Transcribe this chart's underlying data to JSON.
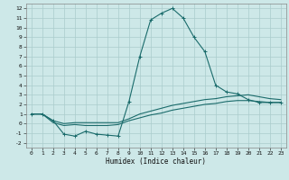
{
  "background_color": "#cde8e8",
  "grid_color": "#aacccc",
  "line_color": "#1a6b6b",
  "xlabel": "Humidex (Indice chaleur)",
  "xlim": [
    -0.5,
    23.5
  ],
  "ylim": [
    -2.5,
    12.5
  ],
  "xticks": [
    0,
    1,
    2,
    3,
    4,
    5,
    6,
    7,
    8,
    9,
    10,
    11,
    12,
    13,
    14,
    15,
    16,
    17,
    18,
    19,
    20,
    21,
    22,
    23
  ],
  "yticks": [
    -2,
    -1,
    0,
    1,
    2,
    3,
    4,
    5,
    6,
    7,
    8,
    9,
    10,
    11,
    12
  ],
  "curve1_x": [
    0,
    1,
    2,
    3,
    4,
    5,
    6,
    7,
    8,
    9,
    10,
    11,
    12,
    13,
    14,
    15,
    16,
    17,
    18,
    19,
    20,
    21,
    22,
    23
  ],
  "curve1_y": [
    1,
    1,
    0.3,
    -1.1,
    -1.3,
    -0.8,
    -1.1,
    -1.2,
    -1.3,
    2.3,
    7,
    10.8,
    11.5,
    12,
    11,
    9,
    7.5,
    4,
    3.3,
    3.1,
    2.5,
    2.2,
    2.2,
    2.2
  ],
  "curve2_x": [
    0,
    1,
    2,
    3,
    4,
    5,
    6,
    7,
    8,
    9,
    10,
    11,
    12,
    13,
    14,
    15,
    16,
    17,
    18,
    19,
    20,
    21,
    22,
    23
  ],
  "curve2_y": [
    1,
    1,
    0.3,
    0.0,
    0.1,
    0.1,
    0.1,
    0.1,
    0.1,
    0.5,
    1.0,
    1.3,
    1.6,
    1.9,
    2.1,
    2.3,
    2.5,
    2.6,
    2.8,
    2.9,
    3.0,
    2.8,
    2.6,
    2.5
  ],
  "curve3_x": [
    0,
    1,
    2,
    3,
    4,
    5,
    6,
    7,
    8,
    9,
    10,
    11,
    12,
    13,
    14,
    15,
    16,
    17,
    18,
    19,
    20,
    21,
    22,
    23
  ],
  "curve3_y": [
    1,
    1,
    0.1,
    -0.2,
    -0.1,
    -0.2,
    -0.2,
    -0.2,
    -0.1,
    0.3,
    0.6,
    0.9,
    1.1,
    1.4,
    1.6,
    1.8,
    2.0,
    2.1,
    2.3,
    2.4,
    2.4,
    2.3,
    2.2,
    2.2
  ]
}
